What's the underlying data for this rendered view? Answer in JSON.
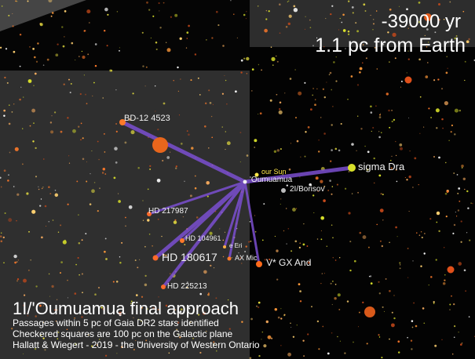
{
  "info": {
    "time": "-39000 yr",
    "distance": "1.1 pc from Earth"
  },
  "caption": {
    "title": "1I/'Oumuamua final approach",
    "line1": "Passages within 5 pc of Gaia DR2 stars identified",
    "line2": "Checkered squares are 100 pc on the Galactic plane",
    "line3": "Hallatt & Wiegert - 2019 - the University of Western Ontario"
  },
  "labels": {
    "oumuamua": "'Oumuamua",
    "sun": "our Sun",
    "sigma_dra": "sigma Dra",
    "borisov": "2I/Borisov",
    "bd12": "BD-12 4523",
    "hd217987": "HD 217987",
    "hd104961": "HD 104961",
    "eps_eri": "e Eri",
    "hd180617": "HD 180617",
    "ax_mic": "AX Mic",
    "v_gx_and": "V* GX And",
    "hd225213": "HD 225213"
  },
  "colors": {
    "track": "#7b4fd0",
    "sun_label": "#ffe84a",
    "grid_light": "#3a3a3a",
    "grid_dark": "#050505"
  }
}
